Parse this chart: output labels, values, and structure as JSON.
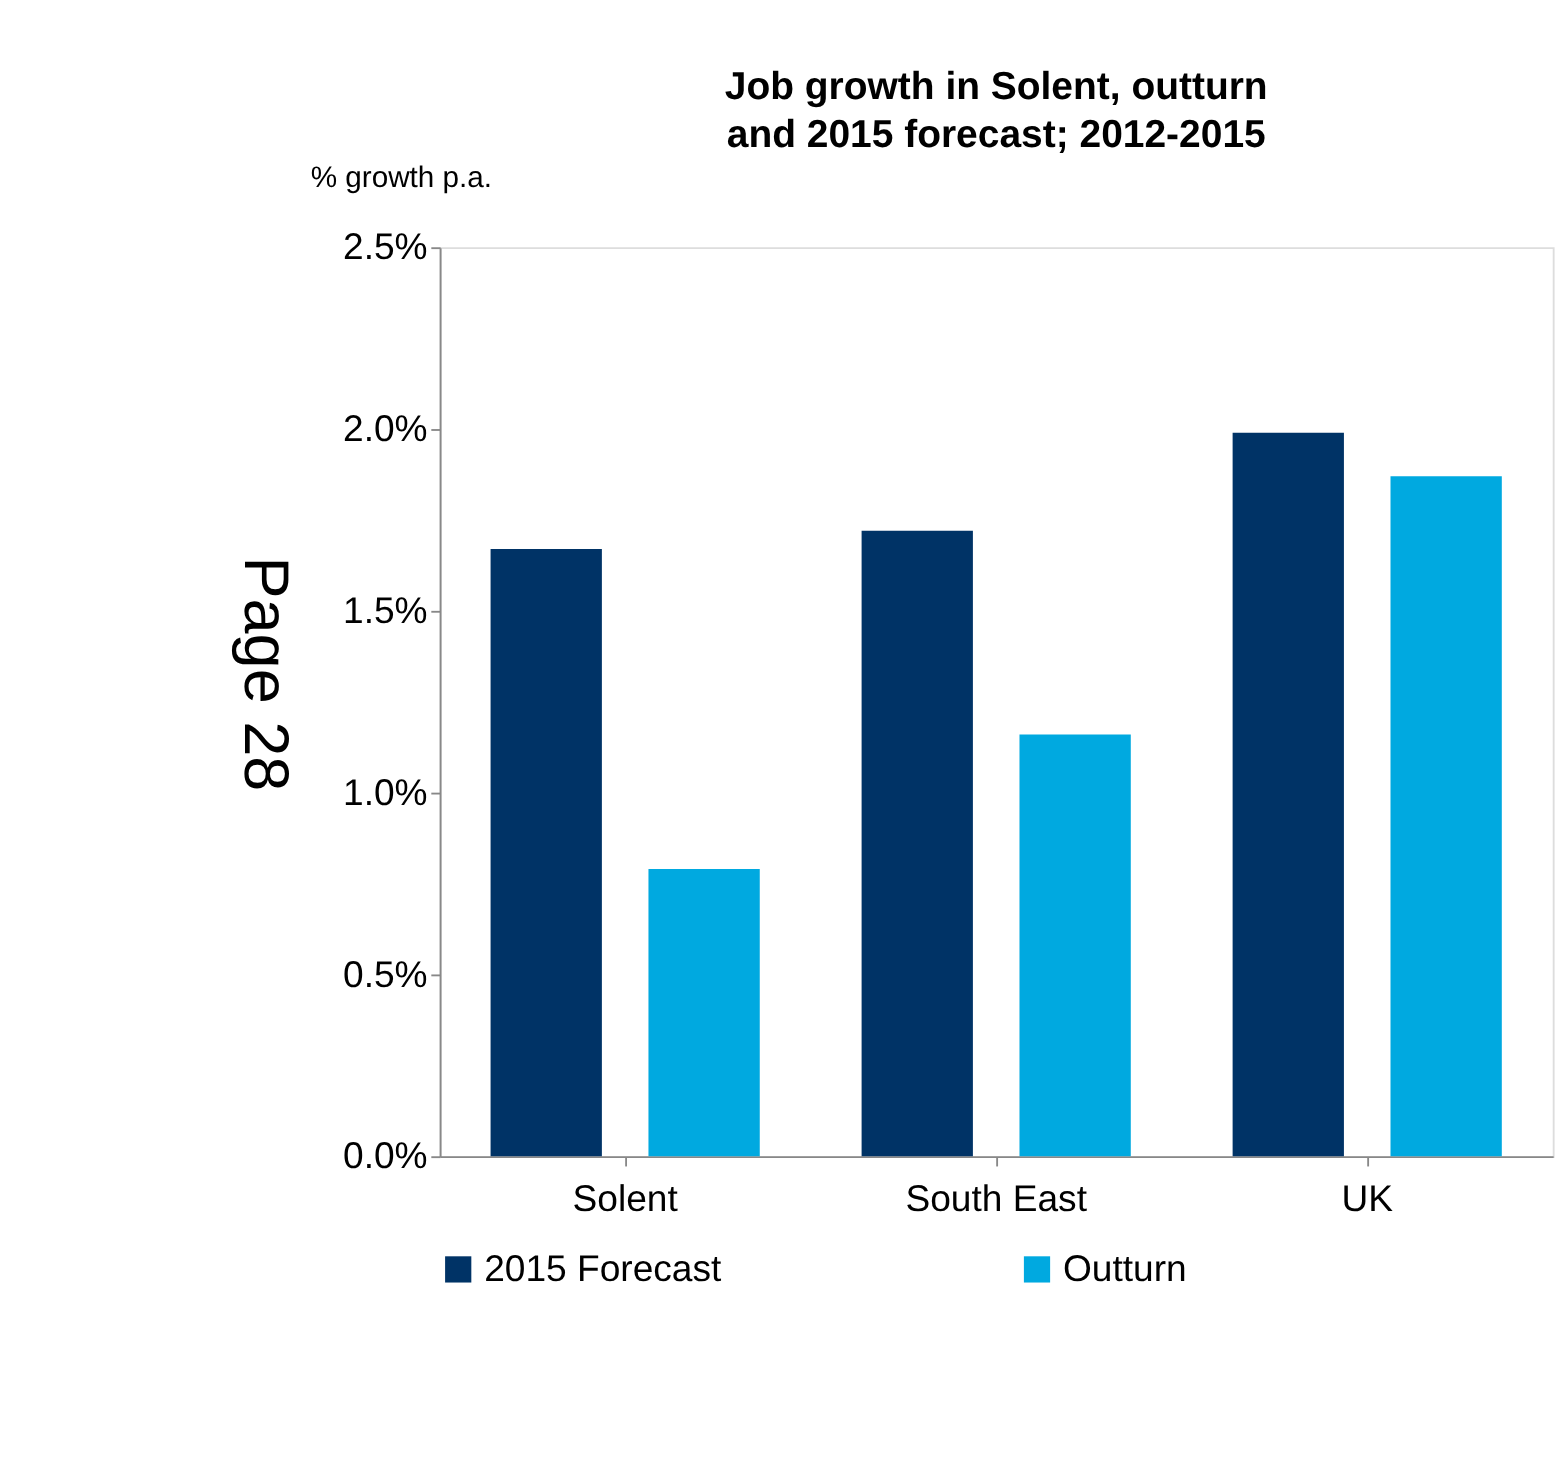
{
  "chart_data": {
    "type": "bar",
    "title": "Job growth in Solent, outturn and 2015 forecast; 2012-2015",
    "ylabel": "% growth p.a.",
    "categories": [
      "Solent",
      "South East",
      "UK"
    ],
    "series": [
      {
        "name": "2015 Forecast",
        "color": "#003366",
        "values": [
          1.67,
          1.72,
          1.99
        ]
      },
      {
        "name": "Outturn",
        "color": "#00a9e0",
        "values": [
          0.79,
          1.16,
          1.87
        ]
      }
    ],
    "ylim": [
      0,
      2.5
    ],
    "yticks": [
      {
        "value": 0,
        "label": "0.0%"
      },
      {
        "value": 0.5,
        "label": "0.5%"
      },
      {
        "value": 1.0,
        "label": "1.0%"
      },
      {
        "value": 1.5,
        "label": "1.5%"
      },
      {
        "value": 2.0,
        "label": "2.0%"
      },
      {
        "value": 2.5,
        "label": "2.5%"
      }
    ],
    "grid": false,
    "legend": "bottom",
    "annotations": [
      "Page 28"
    ]
  }
}
